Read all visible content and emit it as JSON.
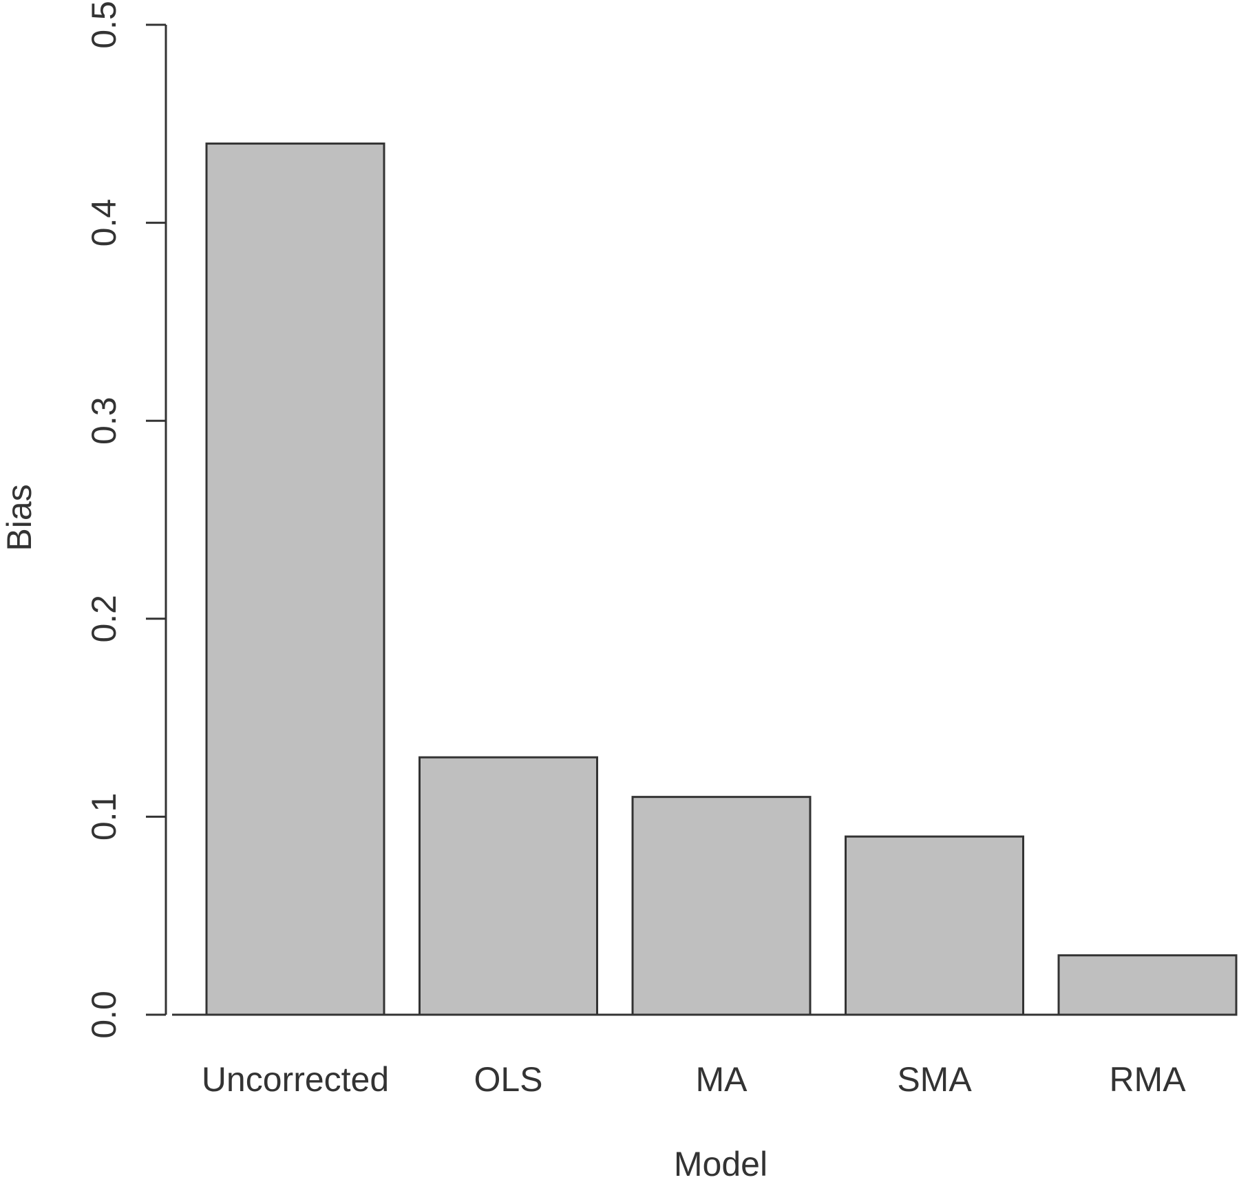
{
  "chart_data": {
    "type": "bar",
    "title": "",
    "xlabel": "Model",
    "ylabel": "Bias",
    "categories": [
      "Uncorrected",
      "OLS",
      "MA",
      "SMA",
      "RMA"
    ],
    "values": [
      0.44,
      0.13,
      0.11,
      0.09,
      0.03
    ],
    "ylim": [
      0,
      0.5
    ],
    "yticks": [
      "0.0",
      "0.1",
      "0.2",
      "0.3",
      "0.4",
      "0.5"
    ],
    "grid": false,
    "legend": "none",
    "bar_color": "#bfbfbf",
    "edge_color": "#333333"
  }
}
